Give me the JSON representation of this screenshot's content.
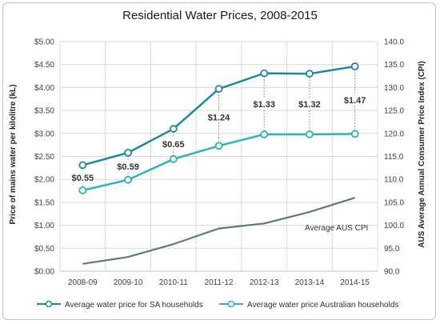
{
  "chart_data": {
    "type": "line",
    "title": "Residential Water Prices, 2008-2015",
    "ylabel": "Price of mains water per kilolitre (kL)",
    "y2label": "AUS Average Annual Consumer Price Index (CPI)",
    "categories": [
      "2008-09",
      "2009-10",
      "2010-11",
      "2011-12",
      "2012-13",
      "2013-14",
      "2014-15"
    ],
    "ylim": [
      0,
      5
    ],
    "yticks": [
      "$0.00",
      "$0.50",
      "$1.00",
      "$1.50",
      "$2.00",
      "$2.50",
      "$3.00",
      "$3.50",
      "$4.00",
      "$4.50",
      "$5.00"
    ],
    "y2lim": [
      90,
      140
    ],
    "y2ticks": [
      "90.0",
      "95.0",
      "100.0",
      "105.0",
      "110.0",
      "115.0",
      "120.0",
      "125.0",
      "130.0",
      "135.0",
      "140.0"
    ],
    "grid": true,
    "legend_position": "bottom",
    "series": [
      {
        "name": "Average water price for SA households",
        "axis": "left",
        "color": "#1a8aa0",
        "values": [
          2.31,
          2.58,
          3.1,
          3.97,
          4.31,
          4.3,
          4.46
        ]
      },
      {
        "name": "Average water price Australian households",
        "axis": "left",
        "color": "#2ab3c4",
        "values": [
          1.76,
          1.99,
          2.44,
          2.73,
          2.98,
          2.98,
          2.99
        ]
      },
      {
        "name": "Average AUS CPI",
        "axis": "right",
        "color": "#5f7a76",
        "values": [
          91.6,
          93.1,
          95.9,
          99.3,
          100.4,
          102.9,
          106.0
        ]
      }
    ],
    "difference_labels": [
      "$0.55",
      "$0.59",
      "$0.65",
      "$1.24",
      "$1.33",
      "$1.32",
      "$1.47"
    ],
    "cpi_annotation": "Average AUS CPI"
  }
}
